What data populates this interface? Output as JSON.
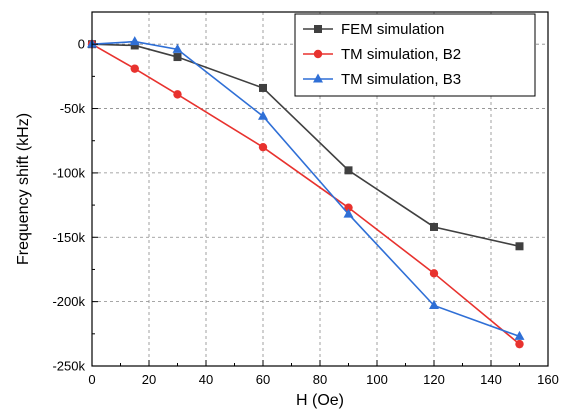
{
  "chart_data": {
    "type": "line",
    "xlabel": "H (Oe)",
    "ylabel": "Frequency shift (kHz)",
    "xlim": [
      0,
      160
    ],
    "ylim": [
      -250000,
      25000
    ],
    "xticks": [
      0,
      20,
      40,
      60,
      80,
      100,
      120,
      140,
      160
    ],
    "xtick_labels": [
      "0",
      "20",
      "40",
      "60",
      "80",
      "100",
      "120",
      "140",
      "160"
    ],
    "yticks": [
      0,
      -50000,
      -100000,
      -150000,
      -200000,
      -250000
    ],
    "ytick_labels": [
      "0",
      "-50k",
      "-100k",
      "-150k",
      "-200k",
      "-250k"
    ],
    "grid": true,
    "legend_position": "top-right",
    "series": [
      {
        "name": "FEM simulation",
        "color": "#404040",
        "marker": "square",
        "x": [
          0,
          15,
          30,
          60,
          90,
          120,
          150
        ],
        "y": [
          0,
          -1000,
          -10000,
          -34000,
          -98000,
          -142000,
          -157000
        ]
      },
      {
        "name": "TM simulation, B2",
        "color": "#e8322e",
        "marker": "circle",
        "x": [
          0,
          15,
          30,
          60,
          90,
          120,
          150
        ],
        "y": [
          0,
          -19000,
          -39000,
          -80000,
          -127000,
          -178000,
          -233000
        ]
      },
      {
        "name": "TM simulation, B3",
        "color": "#2f6fd6",
        "marker": "triangle",
        "x": [
          0,
          15,
          30,
          60,
          90,
          120,
          150
        ],
        "y": [
          0,
          2000,
          -4000,
          -56000,
          -132000,
          -203000,
          -227000
        ]
      }
    ]
  }
}
